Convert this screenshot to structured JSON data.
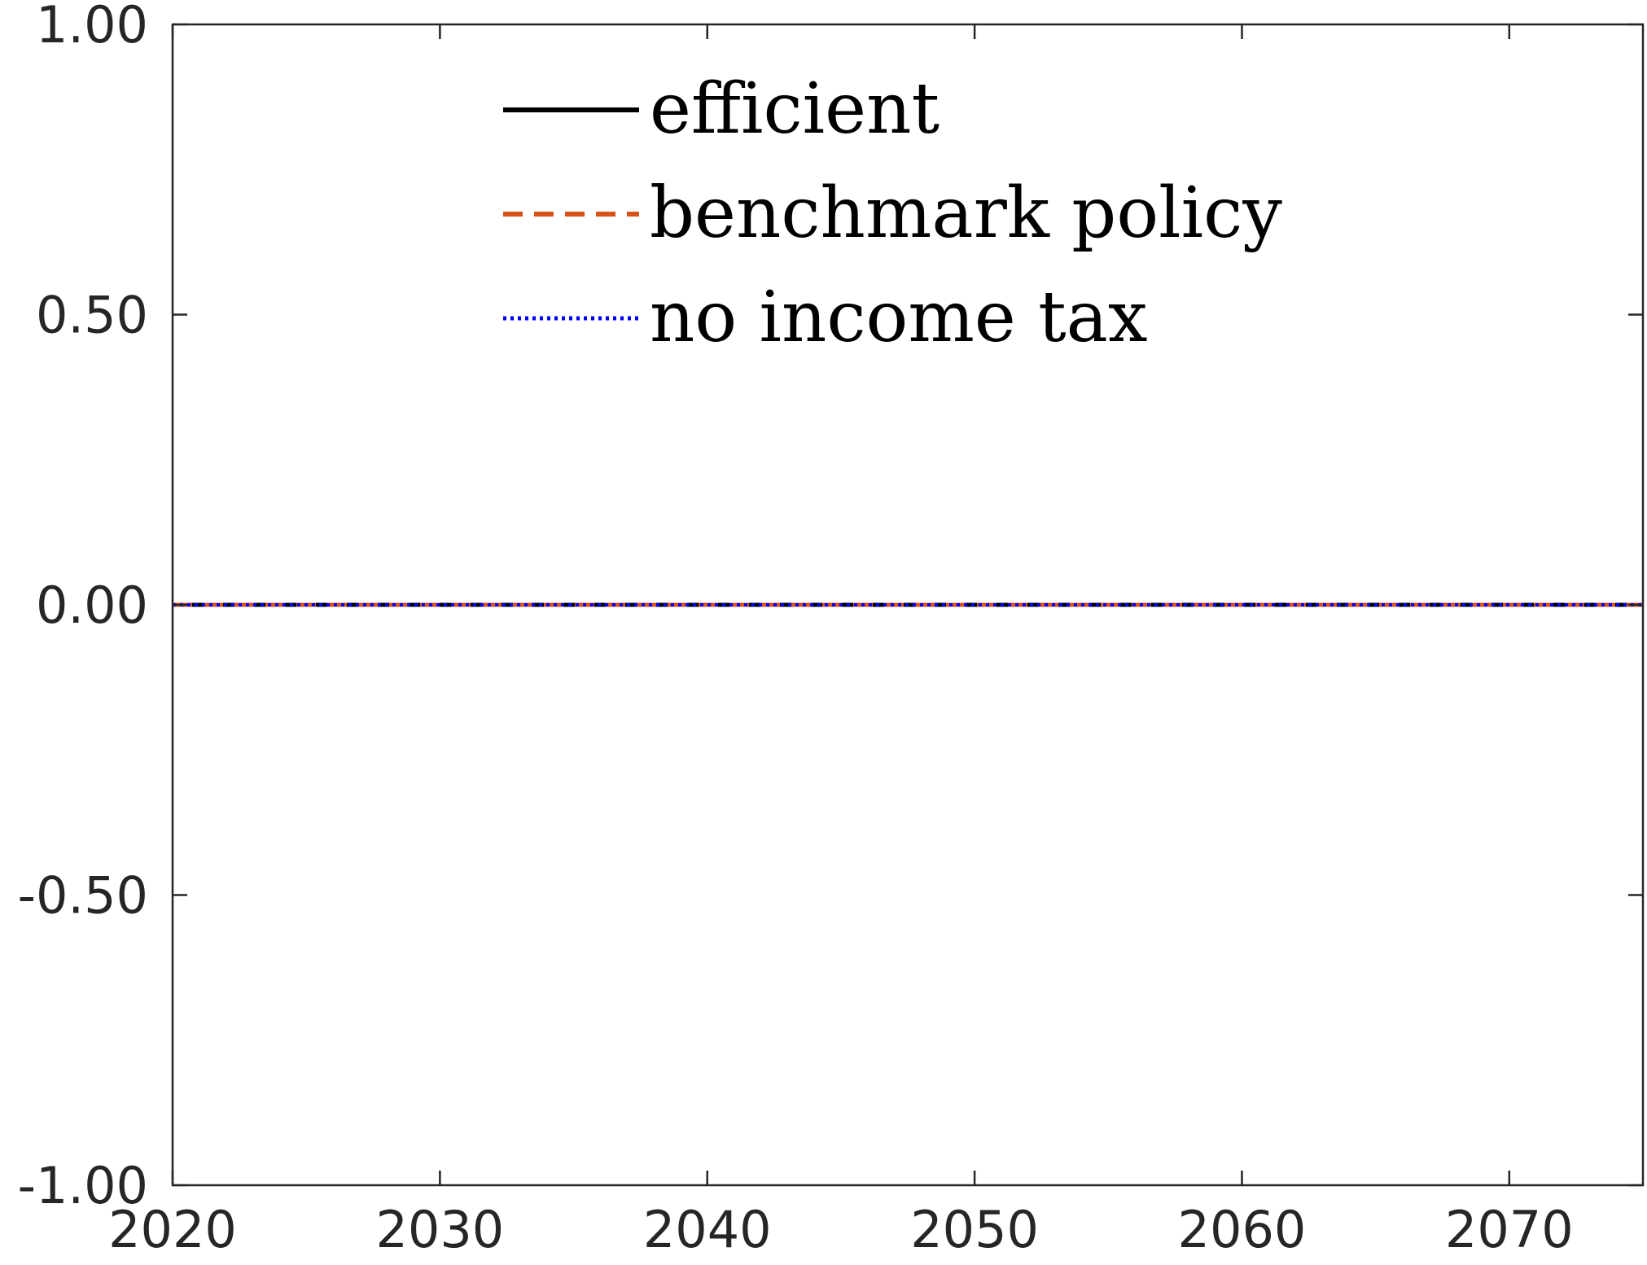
{
  "chart_data": {
    "type": "line",
    "title": "",
    "xlabel": "",
    "ylabel": "",
    "xlim": [
      2020,
      2075
    ],
    "ylim": [
      -1.0,
      1.0
    ],
    "x_ticks": [
      "2020",
      "2030",
      "2040",
      "2050",
      "2060",
      "2070"
    ],
    "x_tick_values": [
      2020,
      2030,
      2040,
      2050,
      2060,
      2070
    ],
    "y_ticks": [
      "-1.00",
      "-0.50",
      "0.00",
      "0.50",
      "1.00"
    ],
    "y_tick_values": [
      -1.0,
      -0.5,
      0.0,
      0.5,
      1.0
    ],
    "grid": false,
    "legend_position": "top-center",
    "x": [
      2020,
      2025,
      2030,
      2035,
      2040,
      2045,
      2050,
      2055,
      2060,
      2065,
      2070,
      2075
    ],
    "series": [
      {
        "name": "efficient",
        "color": "#000000",
        "style": "solid",
        "values": [
          0,
          0,
          0,
          0,
          0,
          0,
          0,
          0,
          0,
          0,
          0,
          0
        ]
      },
      {
        "name": "benchmark policy",
        "color": "#D95319",
        "style": "dashed",
        "values": [
          0,
          0,
          0,
          0,
          0,
          0,
          0,
          0,
          0,
          0,
          0,
          0
        ]
      },
      {
        "name": "no income tax",
        "color": "#0000FF",
        "style": "dotted",
        "values": [
          0,
          0,
          0,
          0,
          0,
          0,
          0,
          0,
          0,
          0,
          0,
          0
        ]
      }
    ]
  }
}
